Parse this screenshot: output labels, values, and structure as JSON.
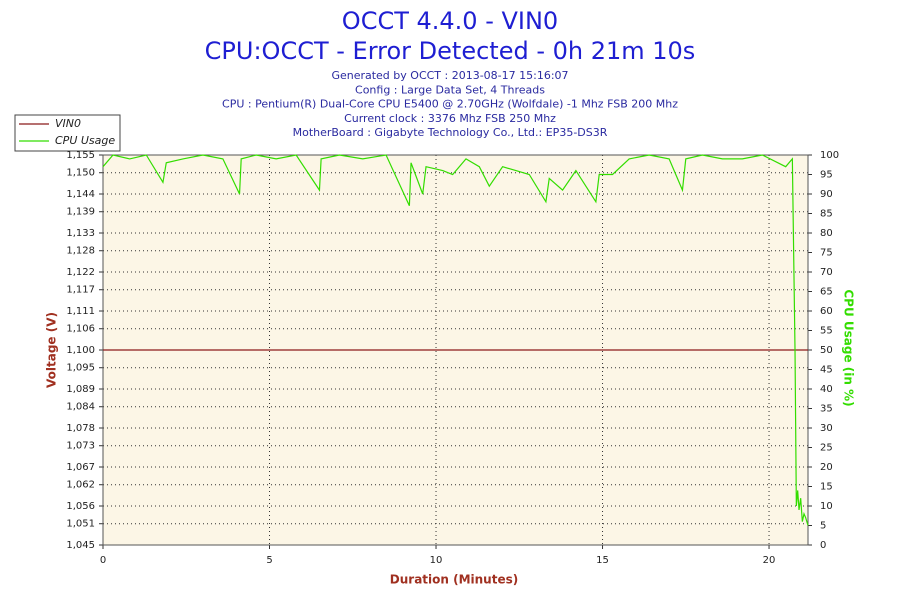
{
  "chart_data": {
    "type": "line",
    "title": "OCCT 4.4.0 - VIN0",
    "subtitle": "CPU:OCCT - Error Detected - 0h 21m 10s",
    "info": [
      "Generated by OCCT : 2013-08-17 15:16:07",
      "Config : Large Data Set, 4 Threads",
      "CPU : Pentium(R) Dual-Core CPU E5400 @ 2.70GHz (Wolfdale) -1 Mhz FSB 200 Mhz",
      "Current clock : 3376 Mhz FSB 250 Mhz",
      "MotherBoard : Gigabyte Technology Co., Ltd.: EP35-DS3R"
    ],
    "xlabel": "Duration (Minutes)",
    "ylabel": "Voltage (V)",
    "y2label": "CPU Usage (in %)",
    "xlim": [
      0,
      21.17
    ],
    "xticks": [
      0,
      5,
      10,
      15,
      20
    ],
    "ylim": [
      1.045,
      1.155
    ],
    "yticks": [
      {
        "value": 1.045,
        "label": "1,045"
      },
      {
        "value": 1.051,
        "label": "1,051"
      },
      {
        "value": 1.056,
        "label": "1,056"
      },
      {
        "value": 1.062,
        "label": "1,062"
      },
      {
        "value": 1.067,
        "label": "1,067"
      },
      {
        "value": 1.073,
        "label": "1,073"
      },
      {
        "value": 1.078,
        "label": "1,078"
      },
      {
        "value": 1.084,
        "label": "1,084"
      },
      {
        "value": 1.089,
        "label": "1,089"
      },
      {
        "value": 1.095,
        "label": "1,095"
      },
      {
        "value": 1.1,
        "label": "1,100"
      },
      {
        "value": 1.106,
        "label": "1,106"
      },
      {
        "value": 1.111,
        "label": "1,111"
      },
      {
        "value": 1.117,
        "label": "1,117"
      },
      {
        "value": 1.122,
        "label": "1,122"
      },
      {
        "value": 1.128,
        "label": "1,128"
      },
      {
        "value": 1.133,
        "label": "1,133"
      },
      {
        "value": 1.139,
        "label": "1,139"
      },
      {
        "value": 1.144,
        "label": "1,144"
      },
      {
        "value": 1.15,
        "label": "1,150"
      },
      {
        "value": 1.155,
        "label": "1,155"
      }
    ],
    "y2lim": [
      0,
      100
    ],
    "y2ticks": [
      0,
      5,
      10,
      15,
      20,
      25,
      30,
      35,
      40,
      45,
      50,
      55,
      60,
      65,
      70,
      75,
      80,
      85,
      90,
      95,
      100
    ],
    "grid": true,
    "legend": "top-left",
    "series": [
      {
        "name": "VIN0",
        "color": "#8b1a1a",
        "x": [
          0,
          21.17
        ],
        "values": [
          1.1,
          1.1
        ]
      },
      {
        "name": "CPU Usage",
        "color": "#33dd00",
        "axis": "y2",
        "x": [
          0,
          0.3,
          0.8,
          1.3,
          1.8,
          1.9,
          2.4,
          3.0,
          3.6,
          4.1,
          4.15,
          4.6,
          5.2,
          5.8,
          6.5,
          6.55,
          7.1,
          7.8,
          8.5,
          9.2,
          9.25,
          9.6,
          9.7,
          10.2,
          10.5,
          10.9,
          11.3,
          11.6,
          12.0,
          12.4,
          12.8,
          13.3,
          13.4,
          13.8,
          14.2,
          14.8,
          14.9,
          15.3,
          15.8,
          16.4,
          17.0,
          17.4,
          17.5,
          18.0,
          18.6,
          19.2,
          19.8,
          20.5,
          20.7,
          20.78,
          20.82,
          20.86,
          20.9,
          20.95,
          21.0,
          21.05,
          21.1,
          21.17
        ],
        "values": [
          97,
          100,
          99,
          100,
          93,
          98,
          99,
          100,
          99,
          90,
          99,
          100,
          99,
          100,
          91,
          99,
          100,
          99,
          100,
          87,
          98,
          90,
          97,
          96,
          95,
          99,
          97,
          92,
          97,
          96,
          95,
          88,
          94,
          91,
          96,
          88,
          95,
          95,
          99,
          100,
          99,
          91,
          99,
          100,
          99,
          99,
          100,
          97,
          99,
          50,
          10,
          14,
          9,
          12,
          6,
          8,
          7,
          5
        ]
      }
    ]
  }
}
